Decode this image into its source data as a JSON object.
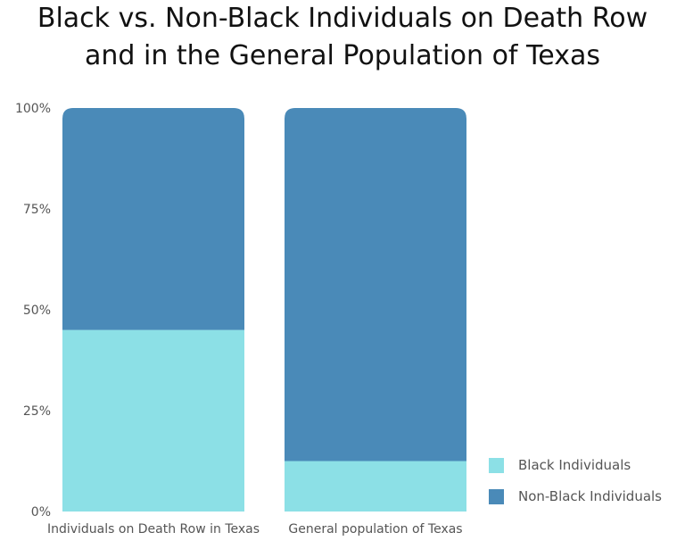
{
  "chart_data": {
    "type": "bar",
    "stacked": true,
    "title": [
      "Black vs. Non-Black Individuals on Death Row",
      "and in the General Population of Texas"
    ],
    "xlabel": "",
    "ylabel": "",
    "ylim": [
      0,
      100
    ],
    "y_ticks": [
      0,
      25,
      50,
      75,
      100
    ],
    "y_tick_labels": [
      "0%",
      "25%",
      "50%",
      "75%",
      "100%"
    ],
    "categories": [
      "Individuals on Death Row in Texas",
      "General population of Texas"
    ],
    "series": [
      {
        "name": "Black Individuals",
        "values": [
          45,
          12.5
        ],
        "color": "#8ce0e6"
      },
      {
        "name": "Non-Black Individuals",
        "values": [
          55,
          87.5
        ],
        "color": "#4a8ab8"
      }
    ],
    "grid": false,
    "legend_position": "bottom-right"
  }
}
